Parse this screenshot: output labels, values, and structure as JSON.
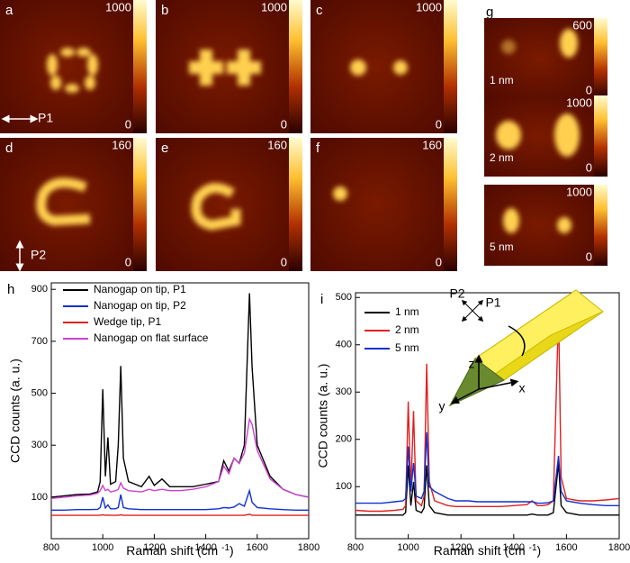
{
  "panels": [
    {
      "label": "a",
      "max": 1000,
      "min": 0,
      "annotation": "P1"
    },
    {
      "label": "b",
      "max": 1000,
      "min": 0
    },
    {
      "label": "c",
      "max": 1000,
      "min": 0
    },
    {
      "label": "d",
      "max": 160,
      "min": 0,
      "annotation": "P2"
    },
    {
      "label": "e",
      "max": 160,
      "min": 0
    },
    {
      "label": "f",
      "max": 160,
      "min": 0
    }
  ],
  "panel_g": {
    "label": "g",
    "subpanels": [
      {
        "max": 600,
        "min": 0,
        "annotation": "1 nm"
      },
      {
        "max": 1000,
        "min": 0,
        "annotation": "2 nm"
      },
      {
        "max": 1000,
        "min": 0,
        "annotation": "5 nm"
      }
    ]
  },
  "chart_data": [
    {
      "type": "line",
      "panel_label": "h",
      "xlabel": [
        "Raman shift (cm ",
        "-1",
        ")"
      ],
      "ylabel": "CCD counts (a. u.)",
      "x": [
        800,
        850,
        900,
        950,
        980,
        990,
        1000,
        1010,
        1020,
        1030,
        1050,
        1060,
        1070,
        1080,
        1100,
        1150,
        1180,
        1200,
        1230,
        1260,
        1300,
        1350,
        1400,
        1450,
        1470,
        1490,
        1510,
        1530,
        1550,
        1570,
        1580,
        1600,
        1650,
        1700,
        1750,
        1800
      ],
      "xlim": [
        800,
        1800
      ],
      "xticks": [
        800,
        1000,
        1200,
        1400,
        1600,
        1800
      ],
      "ylim": [
        -60,
        925
      ],
      "yticks": [
        100,
        300,
        500,
        700,
        900
      ],
      "series": [
        {
          "name": "Nanogap on tip, P1",
          "color": "#000000",
          "values": [
            100,
            105,
            110,
            112,
            120,
            160,
            515,
            180,
            330,
            150,
            160,
            300,
            605,
            250,
            160,
            140,
            180,
            145,
            170,
            140,
            140,
            140,
            150,
            160,
            240,
            200,
            250,
            230,
            300,
            885,
            600,
            300,
            180,
            130,
            110,
            100
          ]
        },
        {
          "name": "Nanogap on tip, P2",
          "color": "#1030d0",
          "values": [
            50,
            50,
            52,
            52,
            53,
            60,
            100,
            58,
            70,
            55,
            55,
            60,
            110,
            60,
            55,
            52,
            52,
            52,
            52,
            52,
            52,
            52,
            52,
            55,
            60,
            58,
            62,
            75,
            65,
            125,
            80,
            60,
            55,
            52,
            50,
            50
          ]
        },
        {
          "name": "Wedge tip, P1",
          "color": "#e02020",
          "values": [
            30,
            30,
            30,
            30,
            30,
            30,
            32,
            30,
            31,
            30,
            30,
            30,
            32,
            30,
            30,
            30,
            30,
            30,
            30,
            30,
            30,
            30,
            30,
            30,
            30,
            30,
            30,
            30,
            30,
            34,
            30,
            30,
            30,
            30,
            30,
            30
          ]
        },
        {
          "name": "Nanogap on flat surface",
          "color": "#d040d0",
          "values": [
            95,
            100,
            105,
            108,
            115,
            125,
            145,
            125,
            130,
            120,
            125,
            130,
            155,
            135,
            125,
            120,
            130,
            125,
            130,
            125,
            125,
            130,
            140,
            160,
            220,
            190,
            250,
            230,
            270,
            400,
            380,
            280,
            170,
            130,
            110,
            100
          ]
        }
      ]
    },
    {
      "type": "line",
      "panel_label": "i",
      "xlabel": [
        "Raman shift (cm ",
        "-1",
        ")"
      ],
      "ylabel": "CCD counts (a. u.)",
      "inset_labels": [
        "P2",
        "P1",
        "z",
        "x",
        "y"
      ],
      "x": [
        800,
        850,
        900,
        950,
        980,
        990,
        1000,
        1010,
        1020,
        1030,
        1050,
        1060,
        1070,
        1080,
        1100,
        1150,
        1180,
        1200,
        1230,
        1260,
        1300,
        1350,
        1400,
        1450,
        1470,
        1490,
        1510,
        1530,
        1550,
        1570,
        1580,
        1600,
        1650,
        1700,
        1750,
        1800
      ],
      "xlim": [
        800,
        1800
      ],
      "xticks": [
        800,
        1000,
        1200,
        1400,
        1600,
        1800
      ],
      "ylim": [
        -10,
        510
      ],
      "yticks": [
        100,
        200,
        300,
        400,
        500
      ],
      "series": [
        {
          "name": "1 nm",
          "color": "#000000",
          "values": [
            40,
            40,
            40,
            40,
            40,
            45,
            145,
            60,
            110,
            50,
            45,
            55,
            145,
            60,
            45,
            40,
            40,
            40,
            40,
            40,
            40,
            40,
            40,
            40,
            42,
            40,
            40,
            40,
            45,
            150,
            60,
            45,
            40,
            40,
            40,
            40
          ]
        },
        {
          "name": "2 nm",
          "color": "#e02020",
          "values": [
            50,
            48,
            48,
            50,
            52,
            60,
            280,
            90,
            260,
            70,
            60,
            80,
            360,
            110,
            70,
            60,
            58,
            58,
            58,
            58,
            58,
            58,
            60,
            62,
            70,
            60,
            60,
            62,
            70,
            470,
            120,
            75,
            70,
            70,
            72,
            75
          ]
        },
        {
          "name": "5 nm",
          "color": "#1030d0",
          "values": [
            65,
            65,
            65,
            68,
            70,
            75,
            185,
            90,
            150,
            80,
            75,
            90,
            215,
            100,
            90,
            75,
            70,
            70,
            70,
            68,
            68,
            68,
            68,
            68,
            68,
            65,
            65,
            66,
            70,
            165,
            90,
            70,
            65,
            62,
            60,
            60
          ]
        }
      ]
    }
  ]
}
